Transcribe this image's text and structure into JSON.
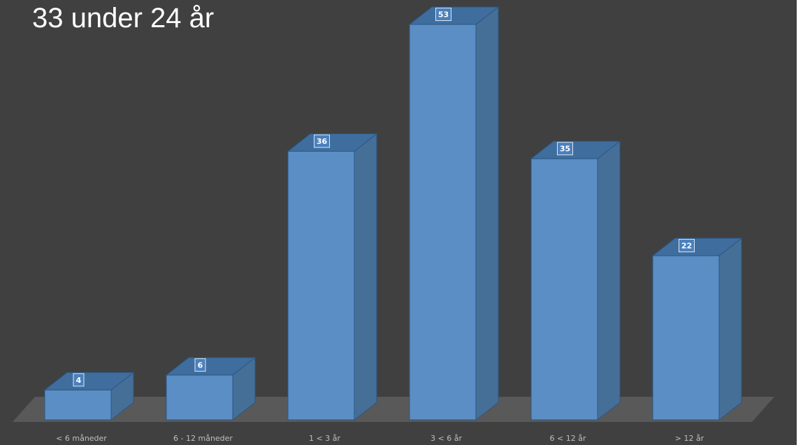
{
  "chart_data": {
    "type": "bar",
    "title": "33 under 24 år",
    "xlabel": "",
    "ylabel": "",
    "categories": [
      "< 6 måneder",
      "6 - 12 måneder",
      "1 < 3 år",
      "3 < 6 år",
      "6 < 12 år",
      "> 12 år"
    ],
    "values": [
      4,
      6,
      36,
      53,
      35,
      22
    ],
    "ylim": [
      0,
      53
    ],
    "grid": false,
    "legend": "none",
    "style": "3d-column"
  },
  "colors": {
    "background": "#404040",
    "floor": "#595959",
    "bar_front": "#5b8ec4",
    "bar_top": "#3f6e9e",
    "bar_side": "#466f98",
    "bar_edge": "#2b5785",
    "label_box": "#4a80bd",
    "tick_text": "#bfbfbf",
    "title_text": "#ffffff"
  }
}
